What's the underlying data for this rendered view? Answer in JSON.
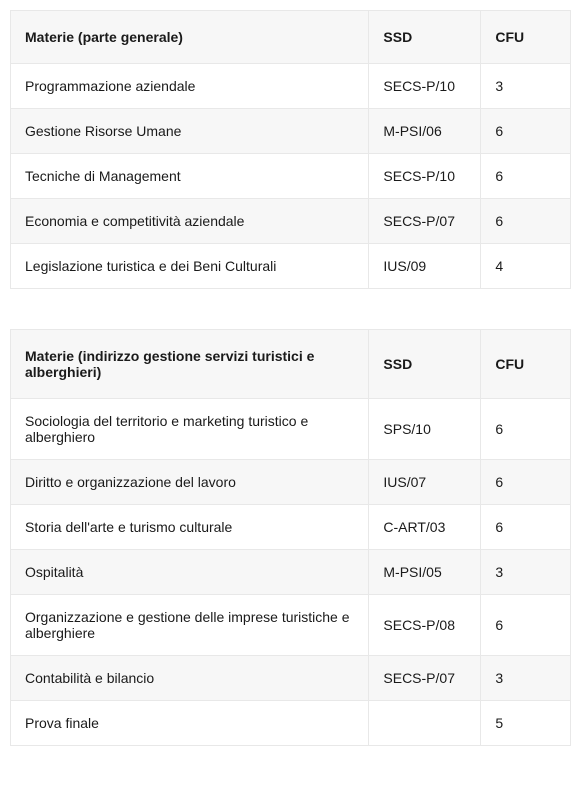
{
  "tables": [
    {
      "columns": [
        "Materie (parte generale)",
        "SSD",
        "CFU"
      ],
      "rows": [
        [
          "Programmazione aziendale",
          "SECS-P/10",
          "3"
        ],
        [
          "Gestione Risorse Umane",
          "M-PSI/06",
          "6"
        ],
        [
          "Tecniche di Management",
          "SECS-P/10",
          "6"
        ],
        [
          "Economia e competitività aziendale",
          "SECS-P/07",
          "6"
        ],
        [
          "Legislazione turistica e dei Beni Culturali",
          "IUS/09",
          "4"
        ]
      ],
      "col_classes": [
        "col-materie",
        "col-ssd",
        "col-cfu"
      ]
    },
    {
      "columns": [
        "Materie (indirizzo gestione servizi turistici e alberghieri)",
        "SSD",
        "CFU"
      ],
      "rows": [
        [
          "Sociologia del territorio e marketing turistico e alberghiero",
          "SPS/10",
          "6"
        ],
        [
          "Diritto e organizzazione del lavoro",
          "IUS/07",
          "6"
        ],
        [
          "Storia dell'arte e turismo culturale",
          "C-ART/03",
          "6"
        ],
        [
          "Ospitalità",
          "M-PSI/05",
          "3"
        ],
        [
          "Organizzazione e gestione delle imprese turistiche e alberghiere",
          "SECS-P/08",
          "6"
        ],
        [
          "Contabilità e bilancio",
          "SECS-P/07",
          "3"
        ],
        [
          "Prova finale",
          "",
          "5"
        ]
      ],
      "col_classes": [
        "col-materie",
        "col-ssd",
        "col-cfu"
      ]
    }
  ],
  "styling": {
    "header_bg": "#f7f7f7",
    "row_even_bg": "#f7f7f7",
    "row_odd_bg": "#ffffff",
    "border_color": "#e8e8e8",
    "font_size": 14,
    "header_font_weight": 700
  }
}
